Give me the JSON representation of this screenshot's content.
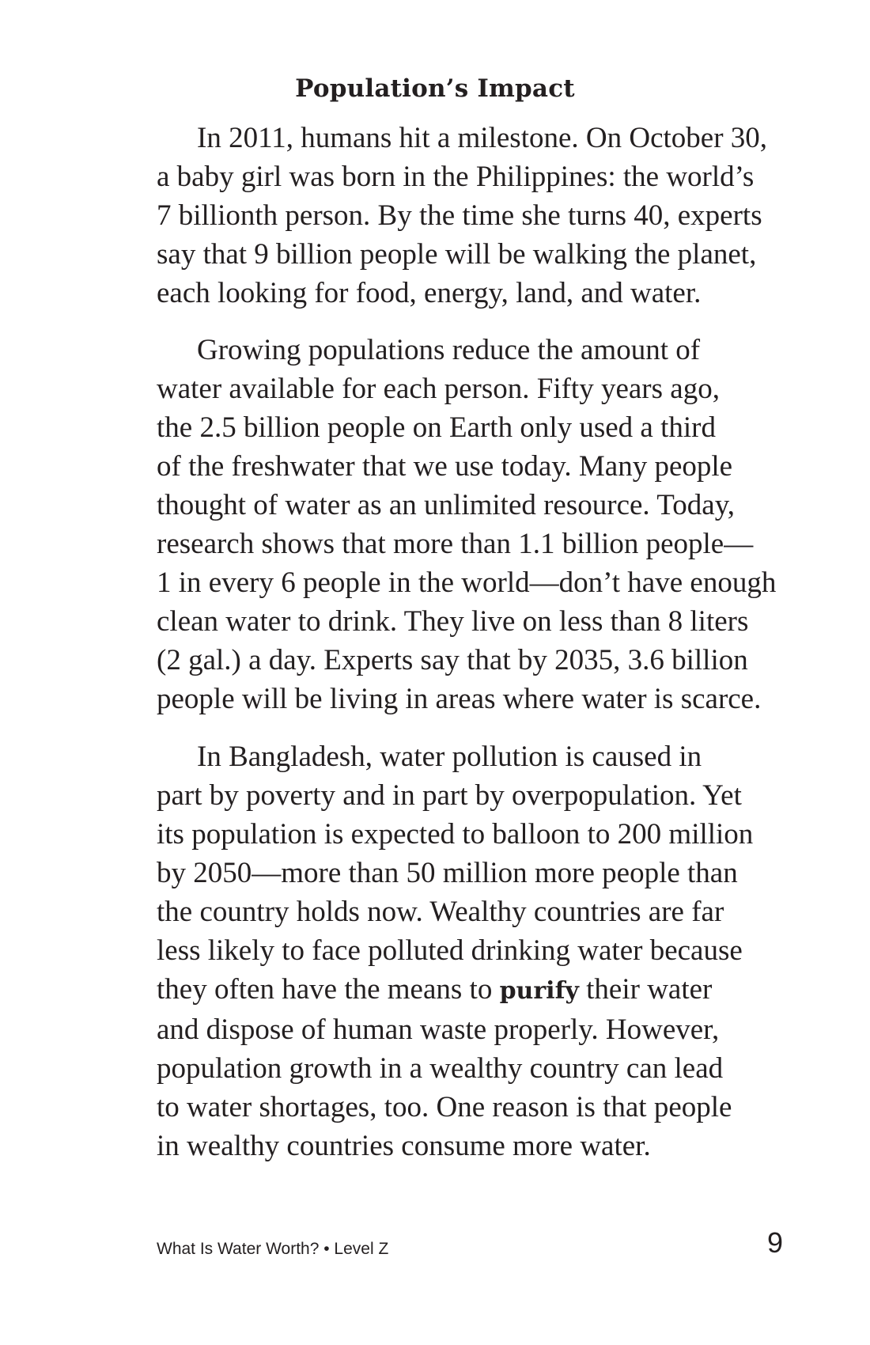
{
  "heading": "Population’s Impact",
  "paragraph1": {
    "lines": [
      "In 2011, humans hit a milestone. On October 30,",
      "a baby girl was born in the Philippines: the world’s",
      "7 billionth person. By the time she turns 40, experts",
      "say that 9 billion people will be walking the planet,",
      "each looking for food, energy, land, and water."
    ]
  },
  "paragraph2": {
    "lines": [
      "Growing populations reduce the amount of",
      "water available for each person. Fifty years ago,",
      "the 2.5 billion people on Earth only used a third",
      "of the freshwater that we use today. Many people",
      "thought of water as an unlimited resource. Today,",
      "research shows that more than 1.1 billion people—",
      "1 in every 6 people in the world—don’t have enough",
      "clean water to drink. They live on less than 8 liters",
      "(2 gal.) a day. Experts say that by 2035, 3.6 billion",
      "people will be living in areas where water is scarce."
    ]
  },
  "paragraph3": {
    "lines": [
      "In Bangladesh, water pollution is caused in",
      "part by poverty and in part by overpopulation. Yet",
      "its population is expected to balloon to 200 million",
      "by 2050—more than 50 million more people than",
      "the country holds now. Wealthy countries are far",
      "less likely to face polluted drinking water because"
    ],
    "line7_before": "they often have the means to ",
    "line7_bold": "purify",
    "line7_after": " their water",
    "lines_end": [
      "and dispose of human waste properly. However,",
      "population growth in a wealthy country can lead",
      "to water shortages, too. One reason is that people",
      "in wealthy countries consume more water."
    ]
  },
  "footer": {
    "book_title": "What Is Water Worth? • Level Z",
    "page_number": "9"
  }
}
